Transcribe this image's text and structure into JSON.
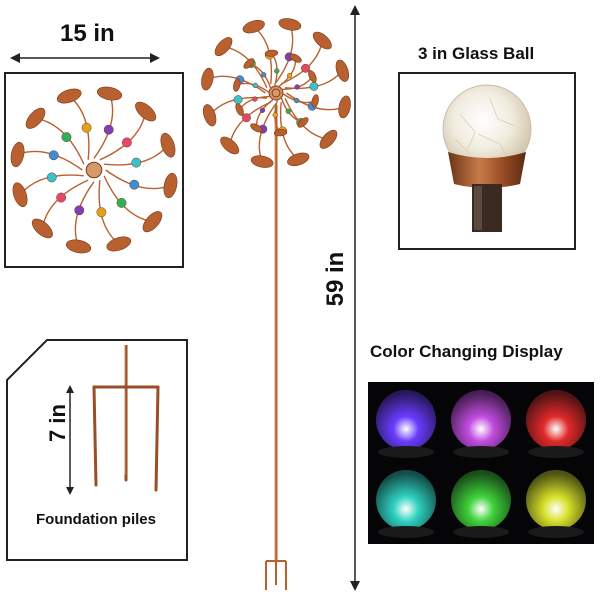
{
  "dimensions": {
    "spinner_width": "15 in",
    "ball_size": "3 in Glass Ball",
    "total_height": "59 in",
    "pile_height": "7 in"
  },
  "labels": {
    "foundation": "Foundation piles",
    "color_display": "Color Changing Display"
  },
  "colors": {
    "copper": "#b8602f",
    "copper_dark": "#7a3a18",
    "bead_colors": [
      "#3a8fd8",
      "#2db25b",
      "#e0a21c",
      "#7d3fb8",
      "#e04a6a",
      "#39c2c9"
    ],
    "glow_colors": [
      "#6a3cff",
      "#c24de0",
      "#e02a2a",
      "#2fd1c0",
      "#3fd23a",
      "#d6e02a"
    ]
  }
}
